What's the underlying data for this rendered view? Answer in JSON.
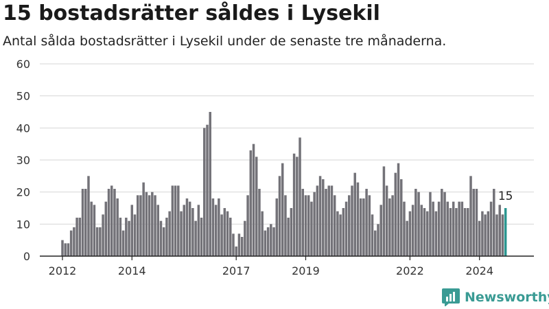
{
  "title": "15 bostadsrätter såldes i Lysekil",
  "subtitle": "Antal sålda bostadsrätter i Lysekil under de senaste tre månaderna.",
  "brand": {
    "name": "Newsworthy",
    "icon": "bar-chart-logo-icon",
    "color": "#3a9b94"
  },
  "colors": {
    "bar": "#737278",
    "highlight": "#2a9690",
    "grid": "#d6d6d6",
    "axis": "#222222"
  },
  "chart_data": {
    "type": "bar",
    "title": "",
    "xlabel": "",
    "ylabel": "",
    "ylim": [
      0,
      60
    ],
    "y_ticks": [
      0,
      10,
      20,
      30,
      40,
      50,
      60
    ],
    "x_ticks": [
      "2012",
      "2014",
      "2017",
      "2019",
      "2022",
      "2024"
    ],
    "grid": true,
    "x_start": "2012-01",
    "x_end": "2024-11",
    "highlight_label": "15",
    "values": [
      5,
      4,
      4,
      8,
      9,
      12,
      12,
      21,
      21,
      25,
      17,
      16,
      9,
      9,
      13,
      17,
      21,
      22,
      21,
      18,
      12,
      8,
      12,
      11,
      16,
      13,
      19,
      19,
      23,
      20,
      19,
      20,
      19,
      16,
      11,
      9,
      12,
      14,
      22,
      22,
      22,
      14,
      16,
      18,
      17,
      15,
      11,
      16,
      12,
      40,
      41,
      45,
      18,
      16,
      18,
      13,
      15,
      14,
      12,
      7,
      3,
      7,
      6,
      11,
      19,
      33,
      35,
      31,
      21,
      14,
      8,
      9,
      10,
      9,
      18,
      25,
      29,
      19,
      12,
      15,
      32,
      31,
      37,
      21,
      19,
      19,
      17,
      20,
      22,
      25,
      24,
      21,
      22,
      22,
      19,
      14,
      13,
      15,
      17,
      19,
      22,
      26,
      23,
      18,
      18,
      21,
      19,
      13,
      8,
      10,
      16,
      28,
      22,
      18,
      19,
      26,
      29,
      24,
      17,
      11,
      14,
      16,
      21,
      20,
      16,
      15,
      14,
      20,
      17,
      14,
      17,
      21,
      20,
      17,
      15,
      17,
      15,
      17,
      17,
      15,
      15,
      25,
      21,
      21,
      11,
      14,
      13,
      14,
      17,
      21,
      13,
      16,
      13,
      15
    ]
  }
}
